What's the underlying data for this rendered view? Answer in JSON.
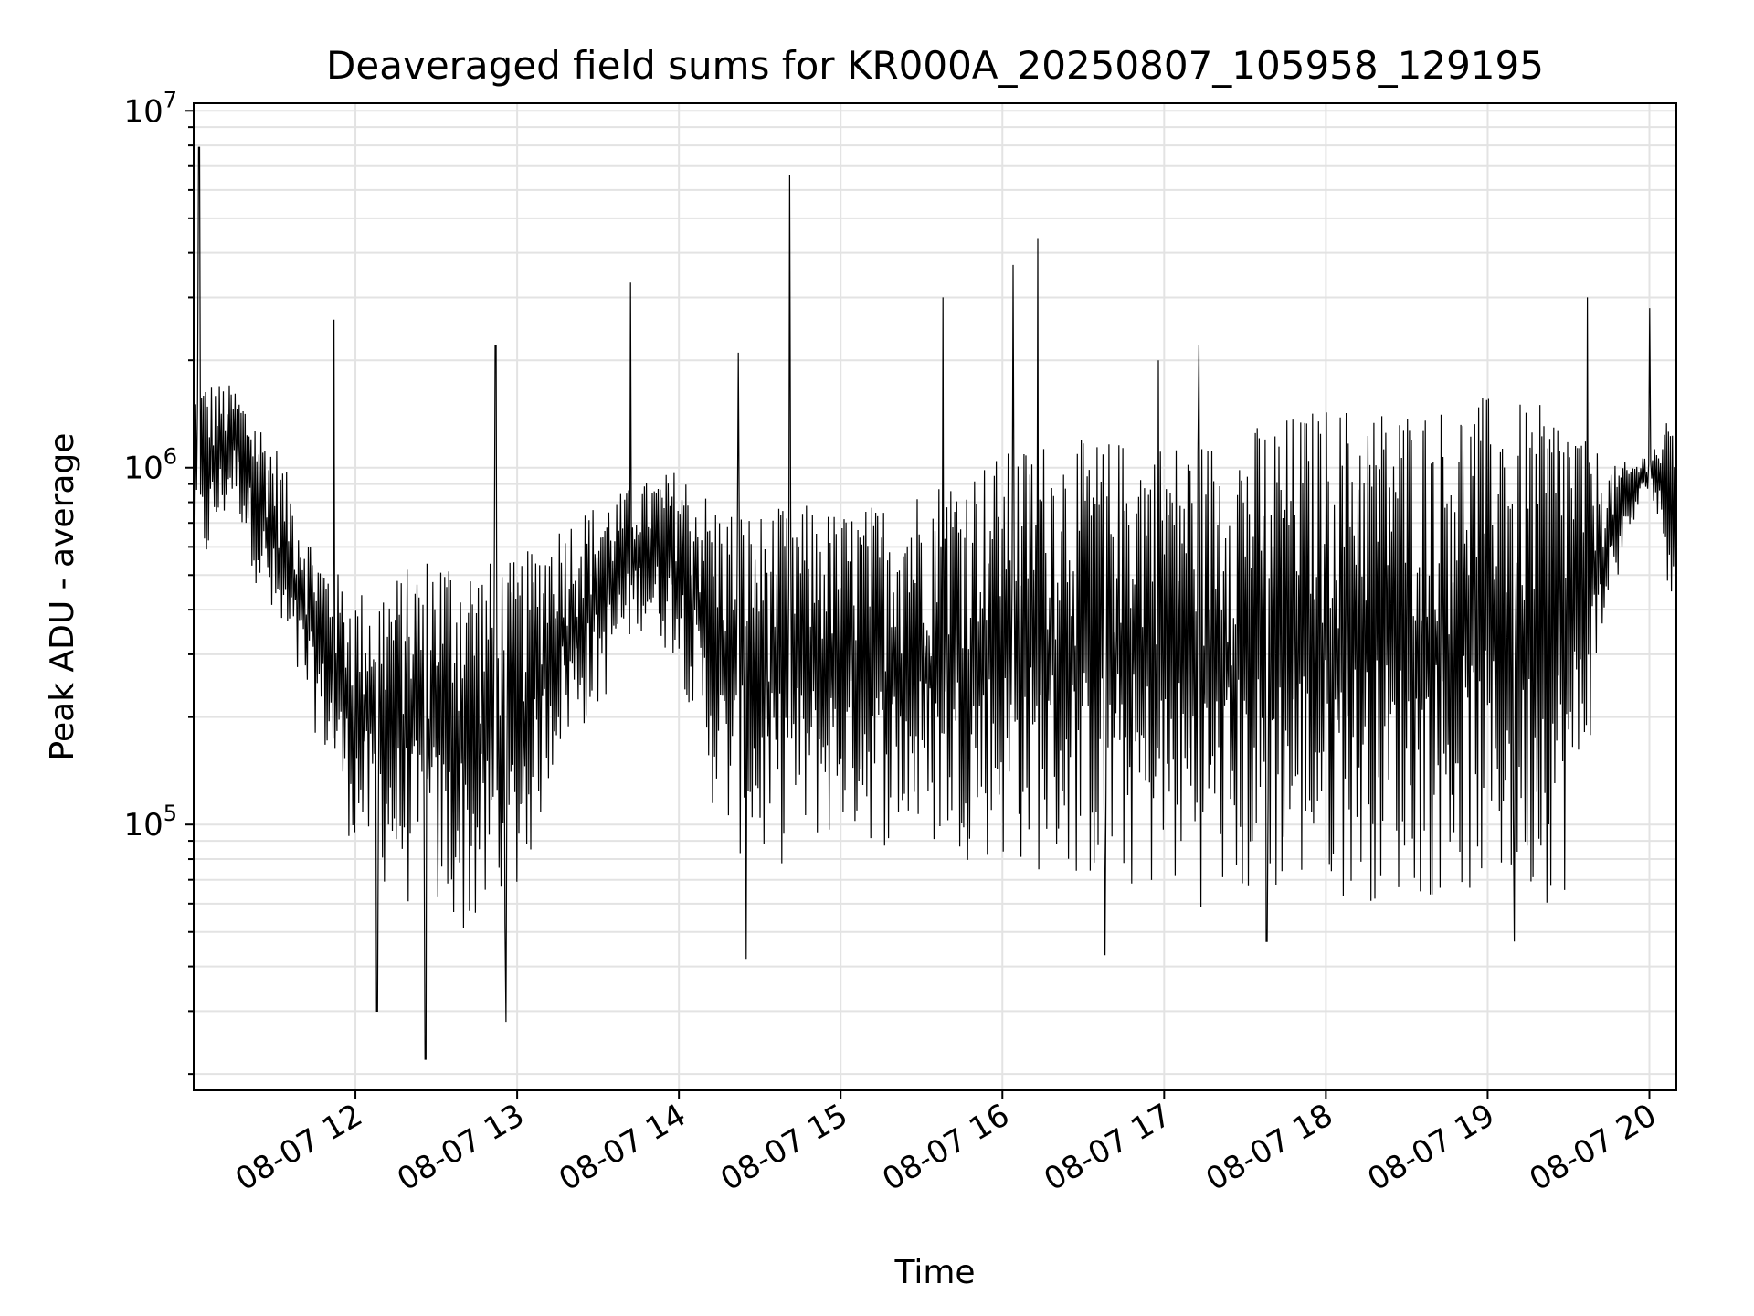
{
  "chart_data": {
    "type": "line",
    "title": "Deaveraged field sums for KR000A_20250807_105958_129195",
    "xlabel": "Time",
    "ylabel": "Peak ADU - average",
    "y_scale": "log",
    "ylim": [
      18000,
      10500000
    ],
    "xlim": [
      "08-07 11:00",
      "08-07 20:10"
    ],
    "grid": true,
    "line_color": "#000000",
    "x_ticks": [
      "08-07 12",
      "08-07 13",
      "08-07 14",
      "08-07 15",
      "08-07 16",
      "08-07 17",
      "08-07 18",
      "08-07 19",
      "08-07 20"
    ],
    "y_ticks": [
      {
        "base": "10",
        "exp": "5",
        "value": 100000
      },
      {
        "base": "10",
        "exp": "6",
        "value": 1000000
      },
      {
        "base": "10",
        "exp": "7",
        "value": 10000000
      }
    ],
    "series_note": "",
    "envelope": {
      "x": [
        "08-07 11:00",
        "08-07 11:15",
        "08-07 11:30",
        "08-07 11:45",
        "08-07 12:00",
        "08-07 12:15",
        "08-07 12:30",
        "08-07 12:45",
        "08-07 13:00",
        "08-07 13:15",
        "08-07 13:30",
        "08-07 13:45",
        "08-07 14:00",
        "08-07 14:15",
        "08-07 14:30",
        "08-07 14:45",
        "08-07 15:00",
        "08-07 15:15",
        "08-07 15:30",
        "08-07 15:45",
        "08-07 16:00",
        "08-07 16:15",
        "08-07 16:30",
        "08-07 16:45",
        "08-07 17:00",
        "08-07 17:15",
        "08-07 17:30",
        "08-07 17:45",
        "08-07 18:00",
        "08-07 18:15",
        "08-07 18:30",
        "08-07 18:45",
        "08-07 19:00",
        "08-07 19:15",
        "08-07 19:30",
        "08-07 19:45",
        "08-07 20:00",
        "08-07 20:10"
      ],
      "upper": [
        1800000,
        1700000,
        1200000,
        600000,
        450000,
        500000,
        600000,
        550000,
        550000,
        700000,
        800000,
        900000,
        1000000,
        800000,
        750000,
        800000,
        750000,
        800000,
        900000,
        1000000,
        1100000,
        1200000,
        1200000,
        1200000,
        1200000,
        1200000,
        1300000,
        1400000,
        1500000,
        1500000,
        1500000,
        1500000,
        1600000,
        1500000,
        1500000,
        1000000,
        1100000,
        1500000
      ],
      "lower": [
        400000,
        800000,
        300000,
        180000,
        80000,
        60000,
        50000,
        45000,
        55000,
        150000,
        200000,
        350000,
        280000,
        90000,
        70000,
        80000,
        90000,
        85000,
        80000,
        80000,
        75000,
        70000,
        65000,
        62000,
        60000,
        58000,
        55000,
        60000,
        62000,
        60000,
        60000,
        60000,
        60000,
        58000,
        62000,
        400000,
        900000,
        350000
      ]
    },
    "spikes": [
      {
        "x": "08-07 11:02",
        "y": 7900000
      },
      {
        "x": "08-07 11:52",
        "y": 2600000
      },
      {
        "x": "08-07 12:08",
        "y": 30000
      },
      {
        "x": "08-07 12:26",
        "y": 22000
      },
      {
        "x": "08-07 12:52",
        "y": 2200000
      },
      {
        "x": "08-07 12:56",
        "y": 28000
      },
      {
        "x": "08-07 13:42",
        "y": 3300000
      },
      {
        "x": "08-07 14:22",
        "y": 2100000
      },
      {
        "x": "08-07 14:25",
        "y": 42000
      },
      {
        "x": "08-07 14:41",
        "y": 6600000
      },
      {
        "x": "08-07 15:38",
        "y": 3000000
      },
      {
        "x": "08-07 16:04",
        "y": 3700000
      },
      {
        "x": "08-07 16:13",
        "y": 4400000
      },
      {
        "x": "08-07 16:38",
        "y": 43000
      },
      {
        "x": "08-07 16:58",
        "y": 2000000
      },
      {
        "x": "08-07 17:13",
        "y": 2200000
      },
      {
        "x": "08-07 17:38",
        "y": 47000
      },
      {
        "x": "08-07 19:10",
        "y": 47000
      },
      {
        "x": "08-07 19:37",
        "y": 3000000
      },
      {
        "x": "08-07 20:00",
        "y": 2800000
      }
    ]
  }
}
